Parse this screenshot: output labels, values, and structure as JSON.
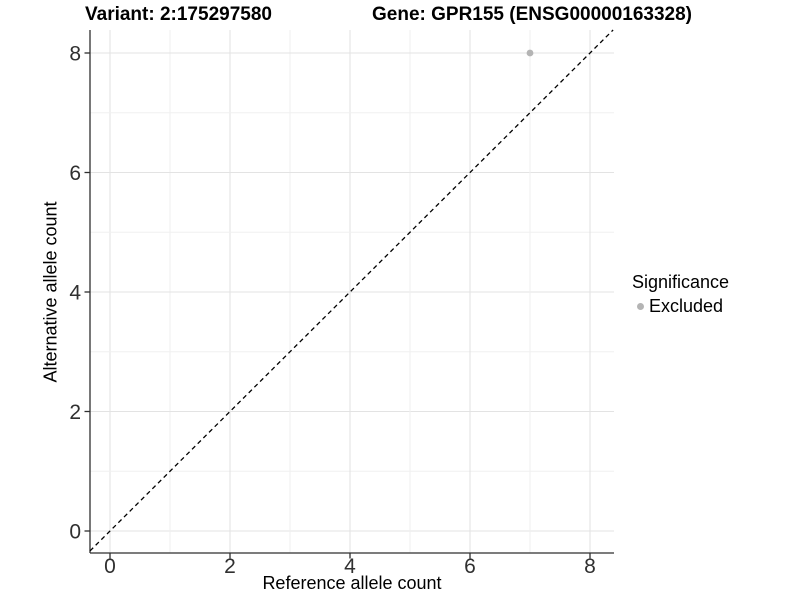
{
  "title": {
    "variant": "Variant: 2:175297580",
    "gene": "Gene: GPR155 (ENSG00000163328)"
  },
  "legend": {
    "title": "Significance",
    "items": [
      {
        "label": "Excluded",
        "color": "#b4b4b4"
      }
    ]
  },
  "chart_data": {
    "type": "scatter",
    "title": "Variant: 2:175297580 — Gene: GPR155 (ENSG00000163328)",
    "xlabel": "Reference allele count",
    "ylabel": "Alternative allele count",
    "x_ticks": [
      0,
      2,
      4,
      6,
      8
    ],
    "y_ticks": [
      0,
      2,
      4,
      6,
      8
    ],
    "xlim": [
      -0.33,
      8.4
    ],
    "ylim": [
      -0.37,
      8.38
    ],
    "grid": "major and minor light-gray gridlines on white panel",
    "legend_position": "right",
    "series": [
      {
        "name": "Excluded",
        "color": "#b4b4b4",
        "points": [
          [
            7,
            8
          ]
        ]
      }
    ],
    "reference_line": {
      "type": "identity y=x",
      "style": "dashed",
      "color": "#000000"
    }
  },
  "colors": {
    "background": "#ffffff",
    "grid_major": "#e3e3e3",
    "grid_minor": "#f0f0f0",
    "axis": "#2f2f2f",
    "tick_label": "#303030",
    "point": "#b4b4b4",
    "dashed_line": "#000000"
  }
}
